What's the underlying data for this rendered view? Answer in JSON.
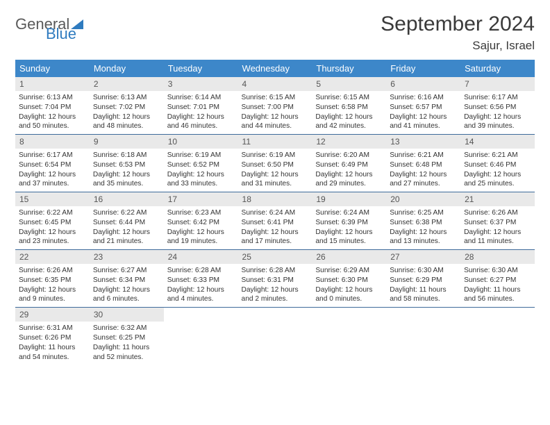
{
  "logo": {
    "word1": "General",
    "word2": "Blue"
  },
  "title": "September 2024",
  "location": "Sajur, Israel",
  "columns": [
    "Sunday",
    "Monday",
    "Tuesday",
    "Wednesday",
    "Thursday",
    "Friday",
    "Saturday"
  ],
  "colors": {
    "header_bg": "#3d87c9",
    "header_text": "#ffffff",
    "daynum_bg": "#e9e9e9",
    "row_border": "#3d6a9a",
    "logo_accent": "#2f7bbf"
  },
  "weeks": [
    [
      {
        "n": "1",
        "sr": "6:13 AM",
        "ss": "7:04 PM",
        "dl": "12 hours and 50 minutes."
      },
      {
        "n": "2",
        "sr": "6:13 AM",
        "ss": "7:02 PM",
        "dl": "12 hours and 48 minutes."
      },
      {
        "n": "3",
        "sr": "6:14 AM",
        "ss": "7:01 PM",
        "dl": "12 hours and 46 minutes."
      },
      {
        "n": "4",
        "sr": "6:15 AM",
        "ss": "7:00 PM",
        "dl": "12 hours and 44 minutes."
      },
      {
        "n": "5",
        "sr": "6:15 AM",
        "ss": "6:58 PM",
        "dl": "12 hours and 42 minutes."
      },
      {
        "n": "6",
        "sr": "6:16 AM",
        "ss": "6:57 PM",
        "dl": "12 hours and 41 minutes."
      },
      {
        "n": "7",
        "sr": "6:17 AM",
        "ss": "6:56 PM",
        "dl": "12 hours and 39 minutes."
      }
    ],
    [
      {
        "n": "8",
        "sr": "6:17 AM",
        "ss": "6:54 PM",
        "dl": "12 hours and 37 minutes."
      },
      {
        "n": "9",
        "sr": "6:18 AM",
        "ss": "6:53 PM",
        "dl": "12 hours and 35 minutes."
      },
      {
        "n": "10",
        "sr": "6:19 AM",
        "ss": "6:52 PM",
        "dl": "12 hours and 33 minutes."
      },
      {
        "n": "11",
        "sr": "6:19 AM",
        "ss": "6:50 PM",
        "dl": "12 hours and 31 minutes."
      },
      {
        "n": "12",
        "sr": "6:20 AM",
        "ss": "6:49 PM",
        "dl": "12 hours and 29 minutes."
      },
      {
        "n": "13",
        "sr": "6:21 AM",
        "ss": "6:48 PM",
        "dl": "12 hours and 27 minutes."
      },
      {
        "n": "14",
        "sr": "6:21 AM",
        "ss": "6:46 PM",
        "dl": "12 hours and 25 minutes."
      }
    ],
    [
      {
        "n": "15",
        "sr": "6:22 AM",
        "ss": "6:45 PM",
        "dl": "12 hours and 23 minutes."
      },
      {
        "n": "16",
        "sr": "6:22 AM",
        "ss": "6:44 PM",
        "dl": "12 hours and 21 minutes."
      },
      {
        "n": "17",
        "sr": "6:23 AM",
        "ss": "6:42 PM",
        "dl": "12 hours and 19 minutes."
      },
      {
        "n": "18",
        "sr": "6:24 AM",
        "ss": "6:41 PM",
        "dl": "12 hours and 17 minutes."
      },
      {
        "n": "19",
        "sr": "6:24 AM",
        "ss": "6:39 PM",
        "dl": "12 hours and 15 minutes."
      },
      {
        "n": "20",
        "sr": "6:25 AM",
        "ss": "6:38 PM",
        "dl": "12 hours and 13 minutes."
      },
      {
        "n": "21",
        "sr": "6:26 AM",
        "ss": "6:37 PM",
        "dl": "12 hours and 11 minutes."
      }
    ],
    [
      {
        "n": "22",
        "sr": "6:26 AM",
        "ss": "6:35 PM",
        "dl": "12 hours and 9 minutes."
      },
      {
        "n": "23",
        "sr": "6:27 AM",
        "ss": "6:34 PM",
        "dl": "12 hours and 6 minutes."
      },
      {
        "n": "24",
        "sr": "6:28 AM",
        "ss": "6:33 PM",
        "dl": "12 hours and 4 minutes."
      },
      {
        "n": "25",
        "sr": "6:28 AM",
        "ss": "6:31 PM",
        "dl": "12 hours and 2 minutes."
      },
      {
        "n": "26",
        "sr": "6:29 AM",
        "ss": "6:30 PM",
        "dl": "12 hours and 0 minutes."
      },
      {
        "n": "27",
        "sr": "6:30 AM",
        "ss": "6:29 PM",
        "dl": "11 hours and 58 minutes."
      },
      {
        "n": "28",
        "sr": "6:30 AM",
        "ss": "6:27 PM",
        "dl": "11 hours and 56 minutes."
      }
    ],
    [
      {
        "n": "29",
        "sr": "6:31 AM",
        "ss": "6:26 PM",
        "dl": "11 hours and 54 minutes."
      },
      {
        "n": "30",
        "sr": "6:32 AM",
        "ss": "6:25 PM",
        "dl": "11 hours and 52 minutes."
      },
      null,
      null,
      null,
      null,
      null
    ]
  ],
  "labels": {
    "sunrise": "Sunrise:",
    "sunset": "Sunset:",
    "daylight": "Daylight:"
  }
}
